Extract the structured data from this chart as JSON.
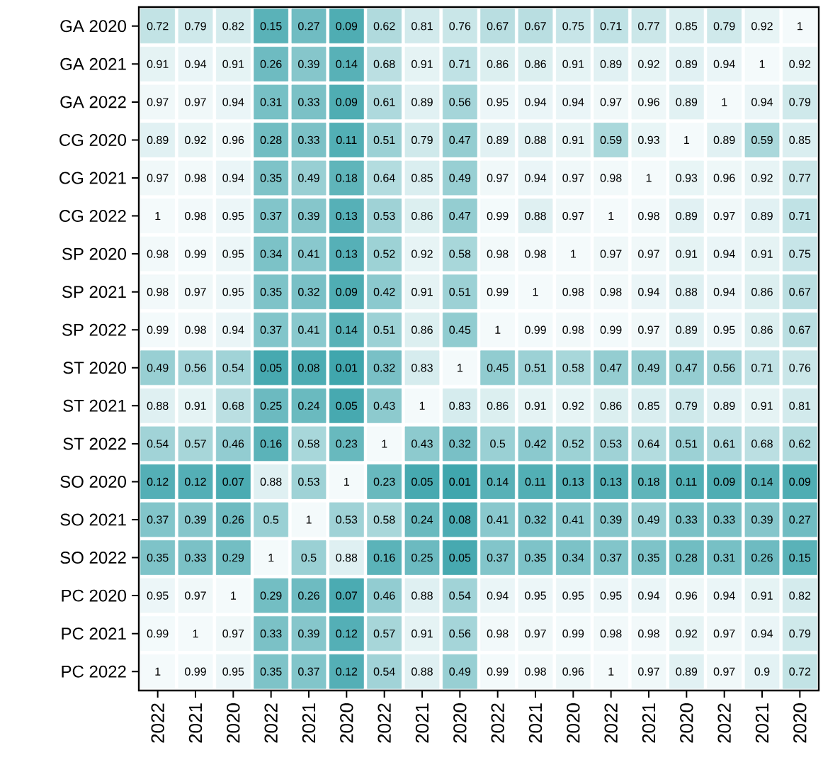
{
  "chart_data": {
    "type": "heatmap",
    "data_labels": true,
    "categories": [
      "2022",
      "2021",
      "2020",
      "2022",
      "2021",
      "2020",
      "2022",
      "2021",
      "2020",
      "2022",
      "2021",
      "2020",
      "2022",
      "2021",
      "2020",
      "2022",
      "2021",
      "2020"
    ],
    "y_categories": [
      "GA 2020",
      "GA 2021",
      "GA 2022",
      "CG 2020",
      "CG 2021",
      "CG 2022",
      "SP 2020",
      "SP 2021",
      "SP 2022",
      "ST 2020",
      "ST 2021",
      "ST 2022",
      "SO 2020",
      "SO 2021",
      "SO 2022",
      "PC 2020",
      "PC 2021",
      "PC 2022"
    ],
    "cells": [
      [
        0.72,
        0.79,
        0.82,
        0.15,
        0.27,
        0.09,
        0.62,
        0.81,
        0.76,
        0.67,
        0.67,
        0.75,
        0.71,
        0.77,
        0.85,
        0.79,
        0.92,
        1
      ],
      [
        0.91,
        0.94,
        0.91,
        0.26,
        0.39,
        0.14,
        0.68,
        0.91,
        0.71,
        0.86,
        0.86,
        0.91,
        0.89,
        0.92,
        0.89,
        0.94,
        1,
        0.92
      ],
      [
        0.97,
        0.97,
        0.94,
        0.31,
        0.33,
        0.09,
        0.61,
        0.89,
        0.56,
        0.95,
        0.94,
        0.94,
        0.97,
        0.96,
        0.89,
        1,
        0.94,
        0.79
      ],
      [
        0.89,
        0.92,
        0.96,
        0.28,
        0.33,
        0.11,
        0.51,
        0.79,
        0.47,
        0.89,
        0.88,
        0.91,
        0.59,
        0.93,
        1,
        0.89,
        0.59,
        0.85
      ],
      [
        0.97,
        0.98,
        0.94,
        0.35,
        0.49,
        0.18,
        0.64,
        0.85,
        0.49,
        0.97,
        0.94,
        0.97,
        0.98,
        1,
        0.93,
        0.96,
        0.92,
        0.77
      ],
      [
        1,
        0.98,
        0.95,
        0.37,
        0.39,
        0.13,
        0.53,
        0.86,
        0.47,
        0.99,
        0.88,
        0.97,
        1,
        0.98,
        0.89,
        0.97,
        0.89,
        0.71
      ],
      [
        0.98,
        0.99,
        0.95,
        0.34,
        0.41,
        0.13,
        0.52,
        0.92,
        0.58,
        0.98,
        0.98,
        1,
        0.97,
        0.97,
        0.91,
        0.94,
        0.91,
        0.75
      ],
      [
        0.98,
        0.97,
        0.95,
        0.35,
        0.32,
        0.09,
        0.42,
        0.91,
        0.51,
        0.99,
        1,
        0.98,
        0.98,
        0.94,
        0.88,
        0.94,
        0.86,
        0.67
      ],
      [
        0.99,
        0.98,
        0.94,
        0.37,
        0.41,
        0.14,
        0.51,
        0.86,
        0.45,
        1,
        0.99,
        0.98,
        0.99,
        0.97,
        0.89,
        0.95,
        0.86,
        0.67
      ],
      [
        0.49,
        0.56,
        0.54,
        0.05,
        0.08,
        0.01,
        0.32,
        0.83,
        1,
        0.45,
        0.51,
        0.58,
        0.47,
        0.49,
        0.47,
        0.56,
        0.71,
        0.76
      ],
      [
        0.88,
        0.91,
        0.68,
        0.25,
        0.24,
        0.05,
        0.43,
        1,
        0.83,
        0.86,
        0.91,
        0.92,
        0.86,
        0.85,
        0.79,
        0.89,
        0.91,
        0.81
      ],
      [
        0.54,
        0.57,
        0.46,
        0.16,
        0.58,
        0.23,
        1,
        0.43,
        0.32,
        0.5,
        0.42,
        0.52,
        0.53,
        0.64,
        0.51,
        0.61,
        0.68,
        0.62
      ],
      [
        0.12,
        0.12,
        0.07,
        0.88,
        0.53,
        1,
        0.23,
        0.05,
        0.01,
        0.14,
        0.11,
        0.13,
        0.13,
        0.18,
        0.11,
        0.09,
        0.14,
        0.09
      ],
      [
        0.37,
        0.39,
        0.26,
        0.5,
        1,
        0.53,
        0.58,
        0.24,
        0.08,
        0.41,
        0.32,
        0.41,
        0.39,
        0.49,
        0.33,
        0.33,
        0.39,
        0.27
      ],
      [
        0.35,
        0.33,
        0.29,
        1,
        0.5,
        0.88,
        0.16,
        0.25,
        0.05,
        0.37,
        0.35,
        0.34,
        0.37,
        0.35,
        0.28,
        0.31,
        0.26,
        0.15
      ],
      [
        0.95,
        0.97,
        1,
        0.29,
        0.26,
        0.07,
        0.46,
        0.88,
        0.54,
        0.94,
        0.95,
        0.95,
        0.95,
        0.94,
        0.96,
        0.94,
        0.91,
        0.82
      ],
      [
        0.99,
        1,
        0.97,
        0.33,
        0.39,
        0.12,
        0.57,
        0.91,
        0.56,
        0.98,
        0.97,
        0.99,
        0.98,
        0.98,
        0.92,
        0.97,
        0.94,
        0.79
      ],
      [
        1,
        0.99,
        0.95,
        0.35,
        0.37,
        0.12,
        0.54,
        0.88,
        0.49,
        0.99,
        0.98,
        0.96,
        1,
        0.97,
        0.89,
        0.97,
        0.9,
        0.72
      ]
    ]
  }
}
